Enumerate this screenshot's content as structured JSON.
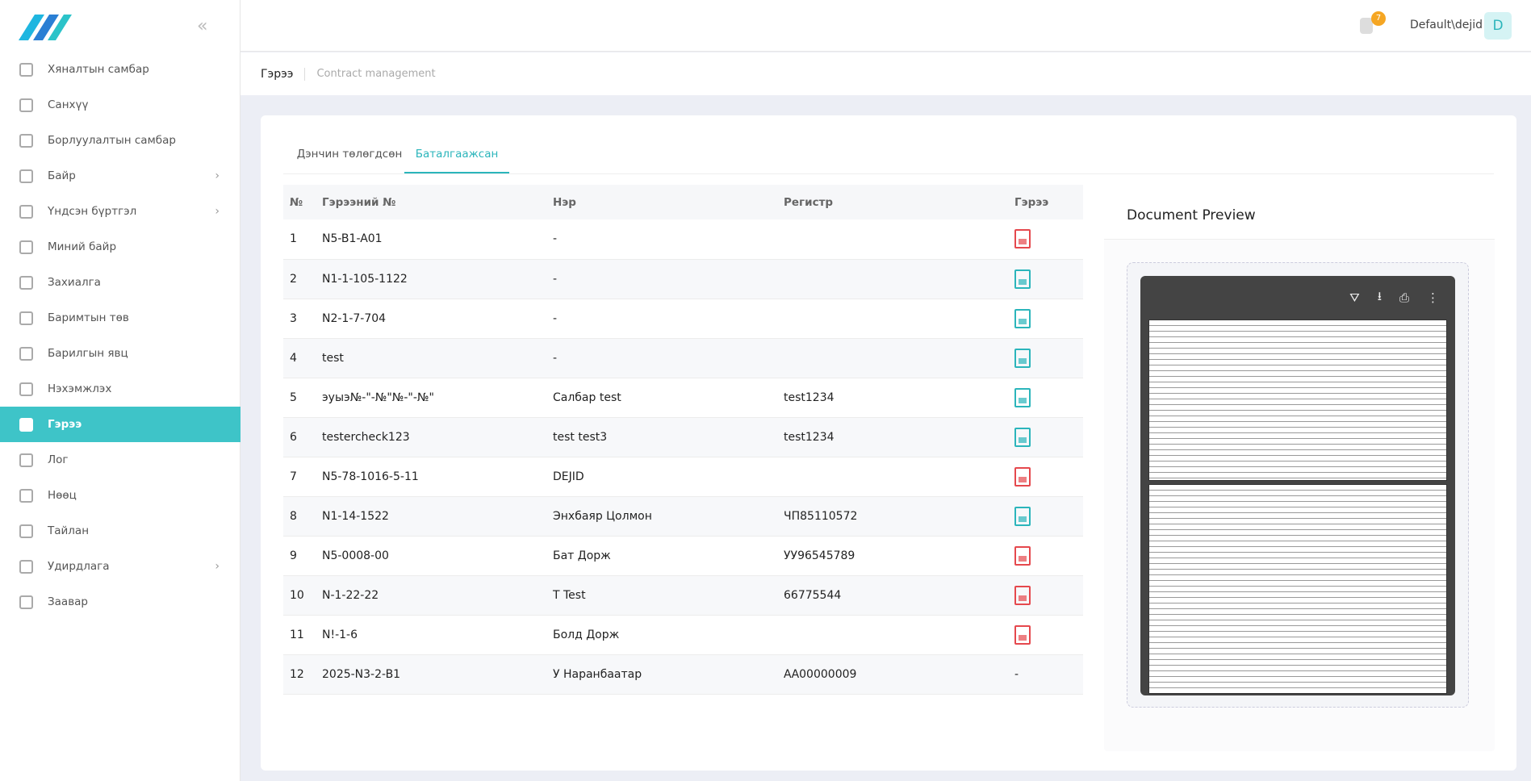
{
  "header": {
    "user": "Default\\dejid",
    "avatar": "D",
    "notifications": "7"
  },
  "breadcrumb": {
    "title": "Гэрээ",
    "subtitle": "Contract management"
  },
  "sidebar": [
    {
      "label": "Хяналтын самбар",
      "submenu": false
    },
    {
      "label": "Санхүү",
      "submenu": false
    },
    {
      "label": "Борлуулалтын самбар",
      "submenu": false
    },
    {
      "label": "Байр",
      "submenu": true
    },
    {
      "label": "Үндсэн бүртгэл",
      "submenu": true
    },
    {
      "label": "Миний байр",
      "submenu": false
    },
    {
      "label": "Захиалга",
      "submenu": false
    },
    {
      "label": "Баримтын төв",
      "submenu": false
    },
    {
      "label": "Барилгын явц",
      "submenu": false
    },
    {
      "label": "Нэхэмжлэх",
      "submenu": false
    },
    {
      "label": "Гэрээ",
      "submenu": false,
      "active": true
    },
    {
      "label": "Лог",
      "submenu": false
    },
    {
      "label": "Нөөц",
      "submenu": false
    },
    {
      "label": "Тайлан",
      "submenu": false
    },
    {
      "label": "Удирдлага",
      "submenu": true
    },
    {
      "label": "Заавар",
      "submenu": false
    }
  ],
  "tabs": [
    {
      "label": "Дэнчин төлөгдсөн",
      "active": false
    },
    {
      "label": "Баталгаажсан",
      "active": true
    }
  ],
  "table": {
    "columns": [
      "№",
      "Гэрээний №",
      "Нэр",
      "Регистр",
      "Гэрээ"
    ],
    "rows": [
      {
        "cells": [
          "1",
          "N5-B1-A01",
          "-",
          null
        ],
        "file": "pdf"
      },
      {
        "cells": [
          "2",
          "N1-1-105-1122",
          "-",
          null
        ],
        "file": "image"
      },
      {
        "cells": [
          "3",
          "N2-1-7-704",
          "-",
          null
        ],
        "file": "image"
      },
      {
        "cells": [
          "4",
          "test",
          "-",
          null
        ],
        "file": "image"
      },
      {
        "cells": [
          "5",
          "эуыэ№-\"-№\"№-\"-№\"",
          "Салбар test",
          "test1234"
        ],
        "file": "image"
      },
      {
        "cells": [
          "6",
          "testercheck123",
          "test test3",
          "test1234"
        ],
        "file": "image"
      },
      {
        "cells": [
          "7",
          "N5-78-1016-5-11",
          "DEJID",
          null
        ],
        "file": "pdf"
      },
      {
        "cells": [
          "8",
          "N1-14-1522",
          "Энхбаяр Цолмон",
          "ЧП85110572"
        ],
        "file": "image"
      },
      {
        "cells": [
          "9",
          "N5-0008-00",
          "Бат Дорж",
          "УУ96545789"
        ],
        "file": "pdf"
      },
      {
        "cells": [
          "10",
          "N-1-22-22",
          "Т Test",
          "66775544"
        ],
        "file": "pdf"
      },
      {
        "cells": [
          "11",
          "N!-1-6",
          "Болд Дорж",
          null
        ],
        "file": "pdf"
      },
      {
        "cells": [
          "12",
          "2025-N3-2-B1",
          "У Наранбаатар",
          "АА00000009"
        ],
        "file": "-"
      }
    ]
  },
  "preview": {
    "title": "Document Preview"
  }
}
